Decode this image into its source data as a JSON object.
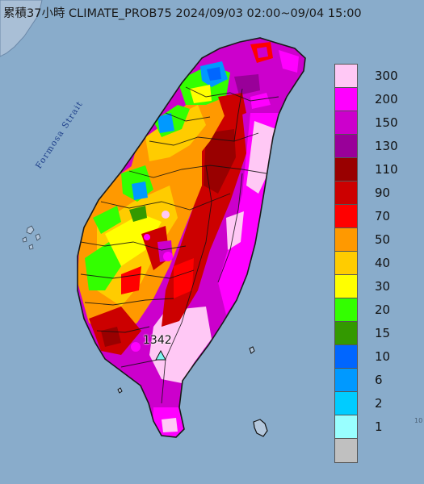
{
  "title": "累積37小時 CLIMATE_PROB75 2024/09/03 02:00~09/04 15:00",
  "strait_label": "Formosa Strait",
  "peak": {
    "value": "1342",
    "marker": "triangle-marker-icon"
  },
  "legend": [
    {
      "label": "300",
      "color": "#ffc8f5"
    },
    {
      "label": "200",
      "color": "#ff00ff"
    },
    {
      "label": "150",
      "color": "#cc00cc"
    },
    {
      "label": "130",
      "color": "#990099"
    },
    {
      "label": "110",
      "color": "#990000"
    },
    {
      "label": "90",
      "color": "#cc0000"
    },
    {
      "label": "70",
      "color": "#ff0000"
    },
    {
      "label": "50",
      "color": "#ff9900"
    },
    {
      "label": "40",
      "color": "#ffcc00"
    },
    {
      "label": "30",
      "color": "#ffff00"
    },
    {
      "label": "20",
      "color": "#33ff00"
    },
    {
      "label": "15",
      "color": "#339900"
    },
    {
      "label": "10",
      "color": "#0066ff"
    },
    {
      "label": "6",
      "color": "#0099ff"
    },
    {
      "label": "2",
      "color": "#00ccff"
    },
    {
      "label": "1",
      "color": "#99ffff"
    },
    {
      "label": "",
      "color": "#c0c0c0"
    }
  ],
  "colors": {
    "sea": "#8fb1cf",
    "land_outline": "#1a1a1a"
  },
  "edge_mark": "10"
}
